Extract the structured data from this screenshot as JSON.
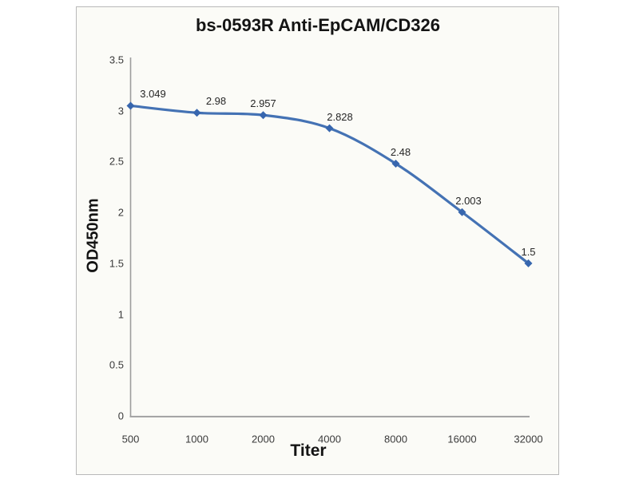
{
  "chart_data": {
    "type": "line",
    "title": "bs-0593R Anti-EpCAM/CD326",
    "xlabel": "Titer",
    "ylabel": "OD450nm",
    "categories": [
      "500",
      "1000",
      "2000",
      "4000",
      "8000",
      "16000",
      "32000"
    ],
    "values": [
      3.049,
      2.98,
      2.957,
      2.828,
      2.48,
      2.003,
      1.5
    ],
    "data_labels": [
      "3.049",
      "2.98",
      "2.957",
      "2.828",
      "2.48",
      "2.003",
      "1.5"
    ],
    "y_ticks": [
      "3.5",
      "3",
      "2.5",
      "2",
      "1.5",
      "1",
      "0.5",
      "0"
    ],
    "ylim": [
      0,
      3.5
    ],
    "grid": false,
    "legend": "none",
    "marker": "diamond",
    "smooth": true,
    "colors": {
      "line": "#4472b4",
      "marker": "#3766ae",
      "axis": "#9d9d9d",
      "frame_border": "#b9b9b9",
      "plot_bg": "#fbfbf7",
      "text": "#3a3a3a",
      "title_text": "#141414"
    }
  }
}
